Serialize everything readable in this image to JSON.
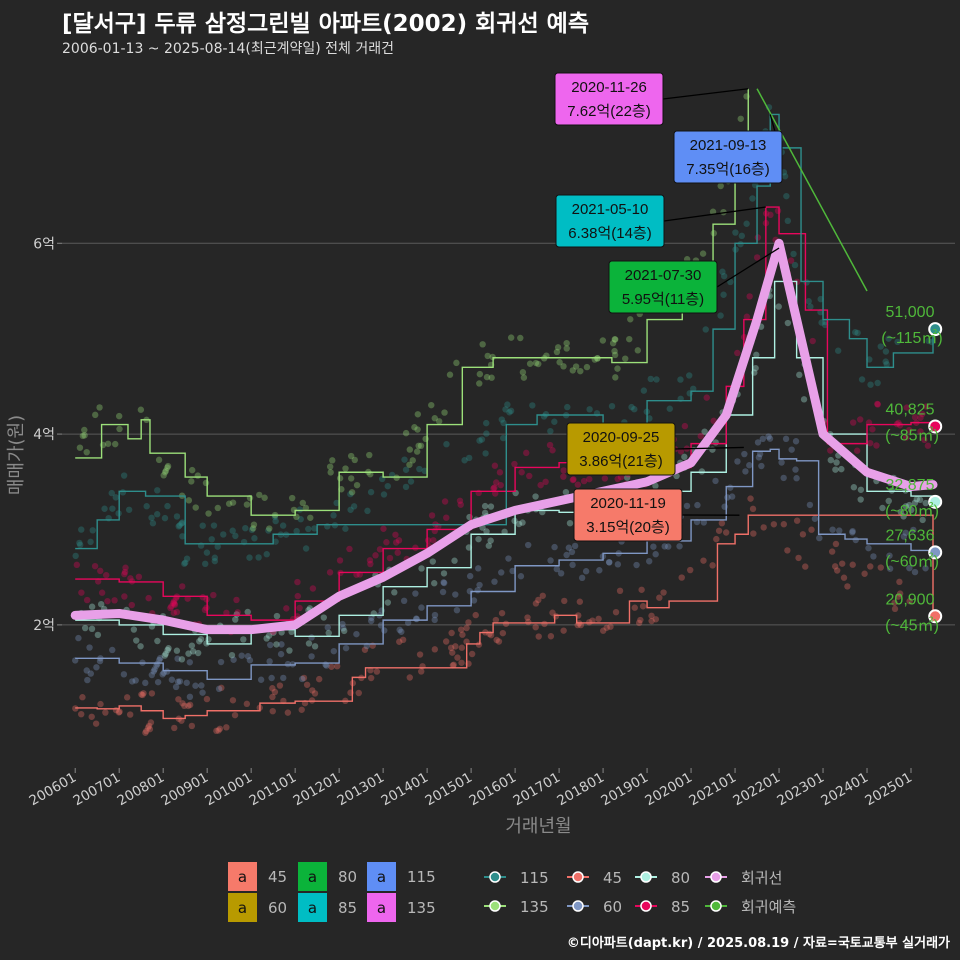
{
  "title": "[달서구] 두류 삼정그린빌 아파트(2002) 회귀선 예측",
  "subtitle": "2006-01-13 ~ 2025-08-14(최근계약일) 전체 거래건",
  "caption": "©디아파트(dapt.kr) / 2025.08.19 / 자료=국토교통부 실거래가",
  "chart_data": {
    "type": "line",
    "xlabel": "거래년월",
    "ylabel": "매매가(원)",
    "x_ticks": [
      "200601",
      "200701",
      "200801",
      "200901",
      "201001",
      "201101",
      "201201",
      "201301",
      "201401",
      "201501",
      "201601",
      "201701",
      "201801",
      "201901",
      "202001",
      "202101",
      "202201",
      "202301",
      "202401",
      "202501"
    ],
    "y_ticks": [
      {
        "value": 2,
        "label": "2억"
      },
      {
        "value": 4,
        "label": "4억"
      },
      {
        "value": 6,
        "label": "6억"
      }
    ],
    "ylim": [
      0.5,
      7.9
    ],
    "xlim": [
      2005.7,
      2026.0
    ],
    "grid": true,
    "series": [
      {
        "name": "45",
        "color": "#f07068",
        "points": [
          [
            2006.0,
            1.13
          ],
          [
            2006.5,
            1.12
          ],
          [
            2007.0,
            1.15
          ],
          [
            2007.5,
            1.1
          ],
          [
            2008.0,
            1.02
          ],
          [
            2008.5,
            1.05
          ],
          [
            2009.0,
            1.1
          ],
          [
            2010.2,
            1.18
          ],
          [
            2011.0,
            1.2
          ],
          [
            2012.3,
            1.45
          ],
          [
            2012.6,
            1.55
          ],
          [
            2014.9,
            1.8
          ],
          [
            2015.2,
            1.92
          ],
          [
            2015.5,
            2.02
          ],
          [
            2016.9,
            2.1
          ],
          [
            2017.4,
            2.02
          ],
          [
            2018.6,
            2.25
          ],
          [
            2019.0,
            2.18
          ],
          [
            2019.5,
            2.25
          ],
          [
            2020.6,
            2.85
          ],
          [
            2021.0,
            2.95
          ],
          [
            2021.3,
            3.15
          ],
          [
            2025.5,
            2.09
          ]
        ]
      },
      {
        "name": "60",
        "color": "#7f97c4",
        "points": [
          [
            2006.0,
            1.65
          ],
          [
            2007.0,
            1.6
          ],
          [
            2008.0,
            1.52
          ],
          [
            2009.0,
            1.43
          ],
          [
            2010.0,
            1.58
          ],
          [
            2011.0,
            1.6
          ],
          [
            2012.0,
            1.8
          ],
          [
            2013.0,
            2.05
          ],
          [
            2014.0,
            2.2
          ],
          [
            2015.0,
            2.35
          ],
          [
            2016.0,
            2.62
          ],
          [
            2017.0,
            2.68
          ],
          [
            2018.0,
            2.75
          ],
          [
            2019.0,
            2.88
          ],
          [
            2020.0,
            3.1
          ],
          [
            2020.8,
            3.45
          ],
          [
            2021.4,
            3.82
          ],
          [
            2021.8,
            3.84
          ],
          [
            2022.0,
            3.74
          ],
          [
            2022.4,
            3.72
          ],
          [
            2022.9,
            2.95
          ],
          [
            2023.5,
            2.9
          ],
          [
            2024.0,
            2.85
          ],
          [
            2025.0,
            2.78
          ],
          [
            2025.5,
            2.76
          ]
        ]
      },
      {
        "name": "80",
        "color": "#aef0e2",
        "points": [
          [
            2006.0,
            2.05
          ],
          [
            2007.0,
            2.0
          ],
          [
            2008.0,
            1.9
          ],
          [
            2009.0,
            1.8
          ],
          [
            2010.0,
            1.95
          ],
          [
            2011.0,
            1.88
          ],
          [
            2012.0,
            2.1
          ],
          [
            2013.0,
            2.4
          ],
          [
            2014.0,
            2.6
          ],
          [
            2015.0,
            2.95
          ],
          [
            2016.0,
            3.2
          ],
          [
            2017.0,
            3.18
          ],
          [
            2018.0,
            3.28
          ],
          [
            2019.0,
            3.4
          ],
          [
            2020.0,
            3.6
          ],
          [
            2020.8,
            4.2
          ],
          [
            2021.4,
            4.8
          ],
          [
            2021.9,
            5.6
          ],
          [
            2022.4,
            4.8
          ],
          [
            2023.0,
            4.0
          ],
          [
            2024.0,
            3.4
          ],
          [
            2025.0,
            3.35
          ],
          [
            2025.5,
            3.29
          ]
        ]
      },
      {
        "name": "85",
        "color": "#e8065c",
        "points": [
          [
            2006.0,
            2.48
          ],
          [
            2007.0,
            2.45
          ],
          [
            2008.0,
            2.3
          ],
          [
            2009.0,
            2.1
          ],
          [
            2010.0,
            2.05
          ],
          [
            2011.0,
            2.25
          ],
          [
            2012.0,
            2.55
          ],
          [
            2013.0,
            2.8
          ],
          [
            2014.0,
            3.0
          ],
          [
            2015.0,
            3.4
          ],
          [
            2016.0,
            3.65
          ],
          [
            2017.0,
            3.7
          ],
          [
            2018.0,
            3.65
          ],
          [
            2019.0,
            3.65
          ],
          [
            2020.0,
            3.9
          ],
          [
            2020.8,
            4.5
          ],
          [
            2021.2,
            5.2
          ],
          [
            2021.7,
            6.38
          ],
          [
            2022.0,
            6.1
          ],
          [
            2022.6,
            5.3
          ],
          [
            2023.1,
            3.9
          ],
          [
            2024.0,
            4.1
          ],
          [
            2025.0,
            4.12
          ],
          [
            2025.5,
            4.08
          ]
        ]
      },
      {
        "name": "115",
        "color": "#2e8e8c",
        "points": [
          [
            2006.0,
            2.8
          ],
          [
            2006.5,
            3.1
          ],
          [
            2007.0,
            3.4
          ],
          [
            2007.6,
            3.35
          ],
          [
            2008.5,
            2.85
          ],
          [
            2009.5,
            2.85
          ],
          [
            2010.5,
            2.95
          ],
          [
            2011.5,
            3.05
          ],
          [
            2015.8,
            4.1
          ],
          [
            2016.5,
            4.2
          ],
          [
            2017.0,
            4.2
          ],
          [
            2018.0,
            4.0
          ],
          [
            2019.0,
            4.35
          ],
          [
            2020.0,
            4.45
          ],
          [
            2020.5,
            5.1
          ],
          [
            2021.0,
            6.0
          ],
          [
            2021.5,
            6.6
          ],
          [
            2021.8,
            7.35
          ],
          [
            2022.0,
            7.0
          ],
          [
            2022.5,
            5.6
          ],
          [
            2023.0,
            5.2
          ],
          [
            2023.6,
            5.0
          ],
          [
            2024.0,
            4.7
          ],
          [
            2024.6,
            4.85
          ],
          [
            2025.5,
            5.1
          ]
        ]
      },
      {
        "name": "135",
        "color": "#9ce07a",
        "points": [
          [
            2006.0,
            3.75
          ],
          [
            2006.6,
            4.1
          ],
          [
            2007.2,
            3.95
          ],
          [
            2007.5,
            4.15
          ],
          [
            2007.7,
            3.8
          ],
          [
            2008.5,
            3.55
          ],
          [
            2009.0,
            3.35
          ],
          [
            2010.0,
            3.15
          ],
          [
            2011.0,
            3.2
          ],
          [
            2012.0,
            3.6
          ],
          [
            2013.0,
            3.55
          ],
          [
            2014.0,
            4.1
          ],
          [
            2014.8,
            4.7
          ],
          [
            2015.5,
            4.8
          ],
          [
            2016.1,
            4.8
          ],
          [
            2017.6,
            4.8
          ],
          [
            2018.2,
            4.75
          ],
          [
            2019.0,
            5.2
          ],
          [
            2019.8,
            5.5
          ],
          [
            2020.5,
            6.2
          ],
          [
            2021.0,
            6.9
          ],
          [
            2021.3,
            7.62
          ]
        ]
      },
      {
        "name": "회귀선",
        "color": "#e8a0e8",
        "points": [
          [
            2006.0,
            2.1
          ],
          [
            2007.0,
            2.12
          ],
          [
            2008.0,
            2.05
          ],
          [
            2009.0,
            1.95
          ],
          [
            2010.0,
            1.95
          ],
          [
            2011.0,
            2.0
          ],
          [
            2012.0,
            2.3
          ],
          [
            2013.0,
            2.5
          ],
          [
            2014.0,
            2.75
          ],
          [
            2015.0,
            3.05
          ],
          [
            2016.0,
            3.2
          ],
          [
            2017.0,
            3.3
          ],
          [
            2018.0,
            3.4
          ],
          [
            2019.0,
            3.5
          ],
          [
            2020.0,
            3.7
          ],
          [
            2020.8,
            4.2
          ],
          [
            2021.5,
            5.2
          ],
          [
            2022.0,
            6.0
          ],
          [
            2022.5,
            5.0
          ],
          [
            2023.0,
            4.0
          ],
          [
            2024.0,
            3.6
          ],
          [
            2025.0,
            3.45
          ],
          [
            2025.5,
            3.47
          ]
        ]
      },
      {
        "name": "회귀예측",
        "color": "#4fb83a",
        "points": [
          [
            2021.5,
            7.62
          ],
          [
            2024.0,
            5.5
          ]
        ]
      }
    ],
    "annotations": [
      {
        "date": "2020-11-26",
        "price": "7.62억(22층)",
        "color": "#ee66ee",
        "x": 2021.3,
        "y": 7.62
      },
      {
        "date": "2021-09-13",
        "price": "7.35억(16층)",
        "color": "#5f8ef5",
        "x": 2021.8,
        "y": 7.35
      },
      {
        "date": "2021-05-10",
        "price": "6.38억(14층)",
        "color": "#00bdc4",
        "x": 2021.7,
        "y": 6.38
      },
      {
        "date": "2021-07-30",
        "price": "5.95억(11층)",
        "color": "#0bb33a",
        "x": 2022.0,
        "y": 5.95
      },
      {
        "date": "2020-09-25",
        "price": "3.86억(21층)",
        "color": "#b89a00",
        "x": 2021.2,
        "y": 3.86
      },
      {
        "date": "2020-11-19",
        "price": "3.15억(20층)",
        "color": "#f67a6a",
        "x": 2021.1,
        "y": 3.15
      }
    ],
    "end_labels": [
      {
        "value": "51,000",
        "area": "(~115㎡)",
        "y": 5.1,
        "color": "#2e8e8c"
      },
      {
        "value": "40,825",
        "area": "(~85㎡)",
        "y": 4.08,
        "color": "#e8065c"
      },
      {
        "value": "32,875",
        "area": "(~80㎡)",
        "y": 3.29,
        "color": "#aef0e2"
      },
      {
        "value": "27,636",
        "area": "(~60㎡)",
        "y": 2.76,
        "color": "#7f97c4"
      },
      {
        "value": "20,900",
        "area": "(~45㎡)",
        "y": 2.09,
        "color": "#f07068"
      }
    ],
    "legend_boxes": [
      {
        "letter": "a",
        "label": "45",
        "color": "#f67a6a"
      },
      {
        "letter": "a",
        "label": "80",
        "color": "#0bb33a"
      },
      {
        "letter": "a",
        "label": "115",
        "color": "#5f8ef5"
      },
      {
        "letter": "a",
        "label": "60",
        "color": "#b89a00"
      },
      {
        "letter": "a",
        "label": "85",
        "color": "#00bdc4"
      },
      {
        "letter": "a",
        "label": "135",
        "color": "#ee66ee"
      }
    ],
    "legend_lines": [
      {
        "label": "115",
        "color": "#2e8e8c"
      },
      {
        "label": "45",
        "color": "#f07068"
      },
      {
        "label": "80",
        "color": "#aef0e2"
      },
      {
        "label": "회귀선",
        "color": "#e8a0e8"
      },
      {
        "label": "135",
        "color": "#9ce07a"
      },
      {
        "label": "60",
        "color": "#7f97c4"
      },
      {
        "label": "85",
        "color": "#e8065c"
      },
      {
        "label": "회귀예측",
        "color": "#4fb83a"
      }
    ],
    "legend_placement": "bottom"
  }
}
